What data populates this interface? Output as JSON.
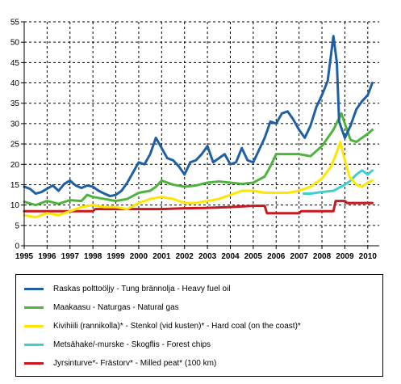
{
  "chart_data": {
    "type": "line",
    "ylim": [
      0,
      55
    ],
    "xlim": [
      1995,
      2010.5
    ],
    "yticks": [
      0,
      5,
      10,
      15,
      20,
      25,
      30,
      35,
      40,
      45,
      50,
      55
    ],
    "xticks": [
      "1995",
      "1996",
      "1997",
      "1998",
      "1999",
      "2000",
      "2001",
      "2002",
      "2003",
      "2004",
      "2005",
      "2006",
      "2007",
      "2008",
      "2009",
      "2010"
    ],
    "grid": true,
    "legend_position": "bottom",
    "series": [
      {
        "name": "Raskas polttoöljy - Tung brännolja - Heavy fuel oil",
        "color": "#1f5fa3",
        "points": [
          [
            1995.0,
            14.5
          ],
          [
            1995.25,
            14.0
          ],
          [
            1995.5,
            12.8
          ],
          [
            1995.75,
            13.2
          ],
          [
            1996.0,
            14.0
          ],
          [
            1996.25,
            14.8
          ],
          [
            1996.5,
            13.5
          ],
          [
            1996.75,
            15.2
          ],
          [
            1997.0,
            16.0
          ],
          [
            1997.25,
            14.8
          ],
          [
            1997.5,
            14.2
          ],
          [
            1997.75,
            14.8
          ],
          [
            1998.0,
            14.5
          ],
          [
            1998.25,
            13.5
          ],
          [
            1998.5,
            12.8
          ],
          [
            1998.75,
            12.2
          ],
          [
            1999.0,
            12.5
          ],
          [
            1999.25,
            13.5
          ],
          [
            1999.5,
            15.5
          ],
          [
            1999.75,
            18.0
          ],
          [
            2000.0,
            20.5
          ],
          [
            2000.25,
            20.0
          ],
          [
            2000.5,
            22.5
          ],
          [
            2000.75,
            26.5
          ],
          [
            2001.0,
            24.0
          ],
          [
            2001.25,
            21.5
          ],
          [
            2001.5,
            21.0
          ],
          [
            2001.75,
            19.5
          ],
          [
            2002.0,
            17.5
          ],
          [
            2002.25,
            20.5
          ],
          [
            2002.5,
            21.0
          ],
          [
            2002.75,
            22.5
          ],
          [
            2003.0,
            24.5
          ],
          [
            2003.25,
            20.5
          ],
          [
            2003.5,
            21.5
          ],
          [
            2003.75,
            22.5
          ],
          [
            2004.0,
            20.0
          ],
          [
            2004.25,
            20.5
          ],
          [
            2004.5,
            24.0
          ],
          [
            2004.75,
            21.0
          ],
          [
            2005.0,
            20.5
          ],
          [
            2005.25,
            23.5
          ],
          [
            2005.5,
            26.5
          ],
          [
            2005.75,
            30.5
          ],
          [
            2006.0,
            30.0
          ],
          [
            2006.25,
            32.5
          ],
          [
            2006.5,
            33.0
          ],
          [
            2006.75,
            31.0
          ],
          [
            2007.0,
            28.5
          ],
          [
            2007.25,
            26.5
          ],
          [
            2007.5,
            29.5
          ],
          [
            2007.75,
            34.0
          ],
          [
            2008.0,
            37.0
          ],
          [
            2008.25,
            40.5
          ],
          [
            2008.5,
            51.5
          ],
          [
            2008.65,
            45.0
          ],
          [
            2008.75,
            30.5
          ],
          [
            2009.0,
            26.5
          ],
          [
            2009.25,
            29.5
          ],
          [
            2009.5,
            33.5
          ],
          [
            2009.75,
            35.5
          ],
          [
            2010.0,
            37.0
          ],
          [
            2010.2,
            40.0
          ]
        ]
      },
      {
        "name": "Maakaasu - Naturgas - Natural gas",
        "color": "#4fb43b",
        "points": [
          [
            1995.0,
            10.8
          ],
          [
            1995.5,
            10.0
          ],
          [
            1996.0,
            11.0
          ],
          [
            1996.5,
            10.3
          ],
          [
            1997.0,
            11.2
          ],
          [
            1997.5,
            11.0
          ],
          [
            1997.75,
            12.5
          ],
          [
            1998.0,
            12.0
          ],
          [
            1998.5,
            11.5
          ],
          [
            1999.0,
            11.0
          ],
          [
            1999.5,
            11.5
          ],
          [
            2000.0,
            13.0
          ],
          [
            2000.5,
            13.5
          ],
          [
            2000.75,
            14.5
          ],
          [
            2001.0,
            16.0
          ],
          [
            2001.5,
            15.0
          ],
          [
            2002.0,
            14.5
          ],
          [
            2002.5,
            14.8
          ],
          [
            2003.0,
            15.5
          ],
          [
            2003.5,
            15.8
          ],
          [
            2004.0,
            15.5
          ],
          [
            2004.5,
            15.2
          ],
          [
            2005.0,
            15.5
          ],
          [
            2005.5,
            17.0
          ],
          [
            2005.75,
            19.5
          ],
          [
            2006.0,
            22.5
          ],
          [
            2006.5,
            22.5
          ],
          [
            2007.0,
            22.5
          ],
          [
            2007.5,
            22.0
          ],
          [
            2008.0,
            24.5
          ],
          [
            2008.5,
            28.5
          ],
          [
            2008.85,
            32.5
          ],
          [
            2009.0,
            30.0
          ],
          [
            2009.25,
            26.0
          ],
          [
            2009.5,
            25.5
          ],
          [
            2010.0,
            27.5
          ],
          [
            2010.2,
            28.5
          ]
        ]
      },
      {
        "name": "Kivihiili (rannikolla)* - Stenkol (vid kusten)* - Hard coal (on the coast)*",
        "color": "#ffe600",
        "points": [
          [
            1995.0,
            7.5
          ],
          [
            1995.5,
            7.0
          ],
          [
            1996.0,
            8.0
          ],
          [
            1996.5,
            7.5
          ],
          [
            1997.0,
            8.5
          ],
          [
            1997.5,
            9.5
          ],
          [
            1998.0,
            10.0
          ],
          [
            1998.5,
            9.5
          ],
          [
            1999.0,
            9.5
          ],
          [
            1999.5,
            9.0
          ],
          [
            2000.0,
            10.5
          ],
          [
            2000.5,
            11.5
          ],
          [
            2001.0,
            12.0
          ],
          [
            2001.5,
            11.5
          ],
          [
            2002.0,
            10.5
          ],
          [
            2002.5,
            10.5
          ],
          [
            2003.0,
            11.0
          ],
          [
            2003.5,
            11.5
          ],
          [
            2004.0,
            12.5
          ],
          [
            2004.5,
            13.5
          ],
          [
            2005.0,
            13.5
          ],
          [
            2005.5,
            13.0
          ],
          [
            2006.0,
            13.0
          ],
          [
            2006.5,
            13.0
          ],
          [
            2007.0,
            13.5
          ],
          [
            2007.5,
            14.5
          ],
          [
            2008.0,
            16.5
          ],
          [
            2008.4,
            19.5
          ],
          [
            2008.65,
            23.0
          ],
          [
            2008.8,
            25.5
          ],
          [
            2009.0,
            21.0
          ],
          [
            2009.2,
            17.0
          ],
          [
            2009.5,
            15.0
          ],
          [
            2009.75,
            14.5
          ],
          [
            2010.0,
            15.5
          ],
          [
            2010.2,
            16.0
          ]
        ]
      },
      {
        "name": "Metsähake/-murske - Skogflis - Forest chips",
        "color": "#3fcfcf",
        "points": [
          [
            2007.2,
            12.8
          ],
          [
            2007.5,
            12.8
          ],
          [
            2008.0,
            13.2
          ],
          [
            2008.5,
            13.5
          ],
          [
            2009.0,
            15.0
          ],
          [
            2009.25,
            16.0
          ],
          [
            2009.5,
            17.5
          ],
          [
            2009.75,
            18.5
          ],
          [
            2010.0,
            17.5
          ],
          [
            2010.2,
            18.5
          ]
        ]
      },
      {
        "name": "Jyrsinturve*- Frästorv* - Milled peat* (100 km)",
        "color": "#c8191e",
        "points": [
          [
            1995.0,
            8.5
          ],
          [
            1998.0,
            8.5
          ],
          [
            1998.1,
            9.0
          ],
          [
            2001.0,
            9.0
          ],
          [
            2002.0,
            9.2
          ],
          [
            2003.0,
            9.3
          ],
          [
            2004.0,
            9.5
          ],
          [
            2005.0,
            9.8
          ],
          [
            2005.5,
            9.8
          ],
          [
            2005.6,
            8.0
          ],
          [
            2007.0,
            8.0
          ],
          [
            2007.1,
            8.5
          ],
          [
            2008.5,
            8.5
          ],
          [
            2008.6,
            11.0
          ],
          [
            2009.0,
            11.0
          ],
          [
            2009.1,
            10.5
          ],
          [
            2010.2,
            10.5
          ]
        ]
      }
    ]
  }
}
